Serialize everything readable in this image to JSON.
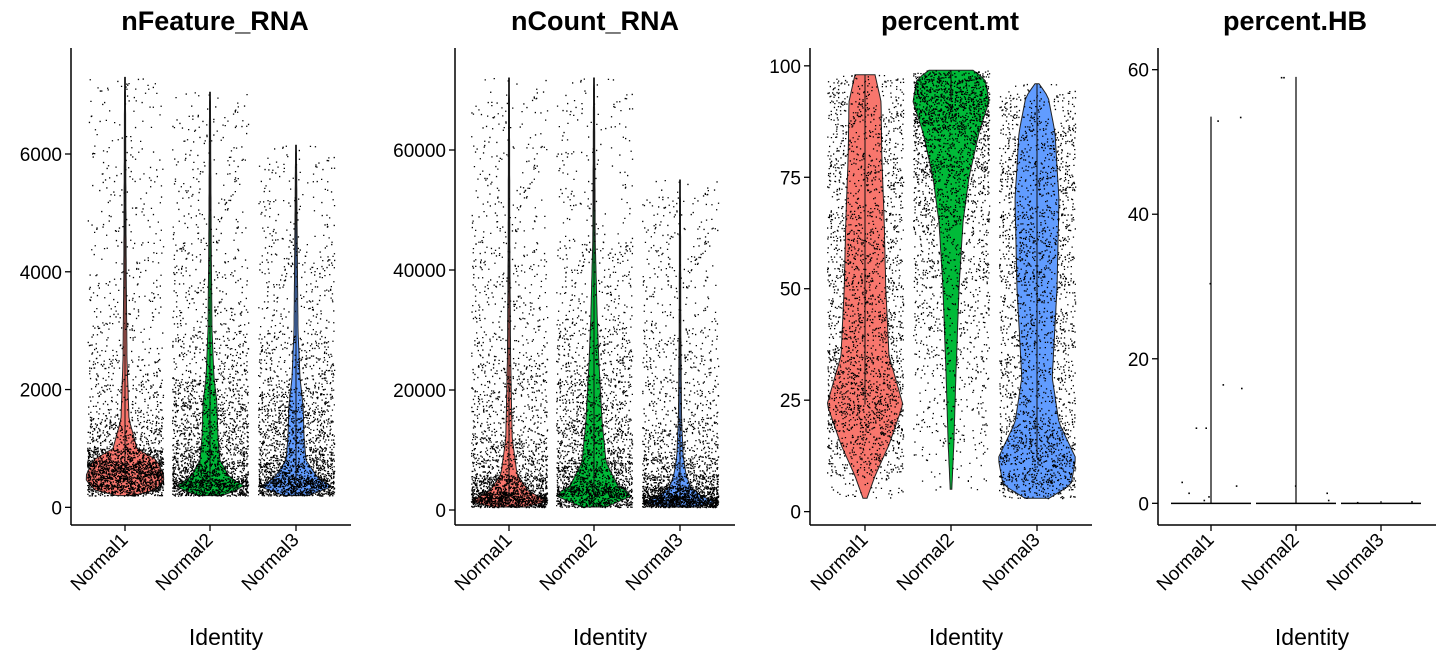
{
  "chart_data": [
    {
      "type": "violin",
      "title": "nFeature_RNA",
      "xlabel": "Identity",
      "ylabel": "",
      "categories": [
        "Normal1",
        "Normal2",
        "Normal3"
      ],
      "colors": [
        "#F8766D",
        "#00BA38",
        "#619CFF"
      ],
      "yticks": [
        0,
        2000,
        4000,
        6000
      ],
      "ylim": [
        -300,
        7800
      ],
      "series": [
        {
          "category": "Normal1",
          "min": 200,
          "max": 7300,
          "mode": 600,
          "shape": [
            [
              200,
              0.2
            ],
            [
              300,
              0.8
            ],
            [
              500,
              1
            ],
            [
              800,
              0.8
            ],
            [
              1000,
              0.3
            ],
            [
              1500,
              0.1
            ],
            [
              2500,
              0.05
            ],
            [
              4000,
              0.03
            ],
            [
              7300,
              0.01
            ]
          ]
        },
        {
          "category": "Normal2",
          "min": 200,
          "max": 7050,
          "mode": 400,
          "shape": [
            [
              200,
              0.3
            ],
            [
              350,
              0.9
            ],
            [
              500,
              0.5
            ],
            [
              800,
              0.25
            ],
            [
              1200,
              0.2
            ],
            [
              1800,
              0.17
            ],
            [
              2200,
              0.1
            ],
            [
              3000,
              0.05
            ],
            [
              4500,
              0.03
            ],
            [
              7050,
              0.01
            ]
          ]
        },
        {
          "category": "Normal3",
          "min": 200,
          "max": 6150,
          "mode": 400,
          "shape": [
            [
              200,
              0.3
            ],
            [
              350,
              0.9
            ],
            [
              500,
              0.55
            ],
            [
              800,
              0.25
            ],
            [
              1200,
              0.2
            ],
            [
              1700,
              0.18
            ],
            [
              2200,
              0.1
            ],
            [
              3000,
              0.05
            ],
            [
              4500,
              0.03
            ],
            [
              6150,
              0.01
            ]
          ]
        }
      ]
    },
    {
      "type": "violin",
      "title": "nCount_RNA",
      "xlabel": "Identity",
      "ylabel": "",
      "categories": [
        "Normal1",
        "Normal2",
        "Normal3"
      ],
      "colors": [
        "#F8766D",
        "#00BA38",
        "#619CFF"
      ],
      "yticks": [
        0,
        20000,
        40000,
        60000
      ],
      "ylim": [
        -2500,
        77000
      ],
      "series": [
        {
          "category": "Normal1",
          "min": 500,
          "max": 72000,
          "mode": 1500,
          "shape": [
            [
              500,
              0.4
            ],
            [
              1500,
              1
            ],
            [
              3000,
              0.5
            ],
            [
              6000,
              0.2
            ],
            [
              12000,
              0.08
            ],
            [
              25000,
              0.04
            ],
            [
              45000,
              0.02
            ],
            [
              72000,
              0.01
            ]
          ]
        },
        {
          "category": "Normal2",
          "min": 500,
          "max": 72000,
          "mode": 2500,
          "shape": [
            [
              500,
              0.3
            ],
            [
              2500,
              1
            ],
            [
              4000,
              0.6
            ],
            [
              8000,
              0.3
            ],
            [
              15000,
              0.2
            ],
            [
              25000,
              0.12
            ],
            [
              32000,
              0.08
            ],
            [
              45000,
              0.03
            ],
            [
              72000,
              0.01
            ]
          ]
        },
        {
          "category": "Normal3",
          "min": 500,
          "max": 55000,
          "mode": 1200,
          "shape": [
            [
              500,
              0.4
            ],
            [
              1200,
              0.9
            ],
            [
              2500,
              0.5
            ],
            [
              4000,
              0.25
            ],
            [
              6000,
              0.15
            ],
            [
              9000,
              0.08
            ],
            [
              15000,
              0.04
            ],
            [
              30000,
              0.02
            ],
            [
              55000,
              0.01
            ]
          ]
        }
      ]
    },
    {
      "type": "violin",
      "title": "percent.mt",
      "xlabel": "Identity",
      "ylabel": "",
      "categories": [
        "Normal1",
        "Normal2",
        "Normal3"
      ],
      "colors": [
        "#F8766D",
        "#00BA38",
        "#619CFF"
      ],
      "yticks": [
        0,
        25,
        50,
        75,
        100
      ],
      "ylim": [
        -3,
        104
      ],
      "series": [
        {
          "category": "Normal1",
          "min": 3,
          "max": 98,
          "mode": 24,
          "shape": [
            [
              3,
              0.05
            ],
            [
              8,
              0.25
            ],
            [
              15,
              0.6
            ],
            [
              24,
              0.95
            ],
            [
              35,
              0.6
            ],
            [
              50,
              0.52
            ],
            [
              65,
              0.48
            ],
            [
              80,
              0.42
            ],
            [
              92,
              0.4
            ],
            [
              98,
              0.25
            ]
          ]
        },
        {
          "category": "Normal2",
          "min": 5,
          "max": 99,
          "mode": 92,
          "shape": [
            [
              5,
              0.02
            ],
            [
              15,
              0.07
            ],
            [
              30,
              0.12
            ],
            [
              50,
              0.2
            ],
            [
              65,
              0.3
            ],
            [
              75,
              0.45
            ],
            [
              85,
              0.7
            ],
            [
              92,
              0.95
            ],
            [
              97,
              0.85
            ],
            [
              99,
              0.55
            ]
          ]
        },
        {
          "category": "Normal3",
          "min": 3,
          "max": 96,
          "mode": 12,
          "shape": [
            [
              3,
              0.3
            ],
            [
              6,
              0.85
            ],
            [
              12,
              0.97
            ],
            [
              20,
              0.55
            ],
            [
              30,
              0.38
            ],
            [
              50,
              0.5
            ],
            [
              70,
              0.55
            ],
            [
              85,
              0.45
            ],
            [
              93,
              0.28
            ],
            [
              96,
              0.05
            ]
          ]
        }
      ]
    },
    {
      "type": "violin",
      "title": "percent.HB",
      "xlabel": "Identity",
      "ylabel": "",
      "categories": [
        "Normal1",
        "Normal2",
        "Normal3"
      ],
      "colors": [
        "#F8766D",
        "#00BA38",
        "#619CFF"
      ],
      "yticks": [
        0,
        20,
        40,
        60
      ],
      "ylim": [
        -3,
        63
      ],
      "series": [
        {
          "category": "Normal1",
          "min": 0,
          "max": 53.5,
          "mode": 0,
          "points": [
            53.5,
            53,
            30.5,
            16.5,
            16,
            10.5,
            10.5,
            3,
            2.5,
            1.5,
            1,
            0.5
          ]
        },
        {
          "category": "Normal2",
          "min": 0,
          "max": 59,
          "mode": 0,
          "points": [
            59,
            59,
            2.5,
            1.5,
            0.5
          ]
        },
        {
          "category": "Normal3",
          "min": 0,
          "max": 0.3,
          "mode": 0,
          "points": [
            0.3,
            0.2
          ]
        }
      ]
    }
  ]
}
